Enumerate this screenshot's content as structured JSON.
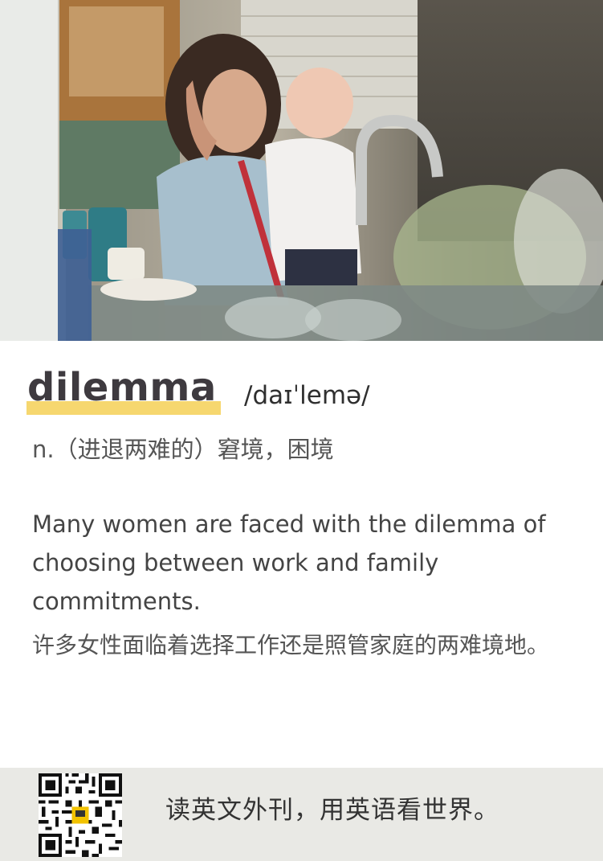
{
  "entry": {
    "word": "dilemma",
    "phonetic": "/daɪˈlemə/",
    "definition": "n.（进退两难的）窘境，困境"
  },
  "example": {
    "english": "Many women are faced with the dilemma of choosing between work and family commitments.",
    "chinese": "许多女性面临着选择工作还是照管家庭的两难境地。"
  },
  "footer": {
    "slogan": "读英文外刊，用英语看世界。"
  },
  "colors": {
    "highlight": "#f6d76f",
    "word": "#3e3a3f",
    "footer_bg": "#e9e9e5"
  }
}
